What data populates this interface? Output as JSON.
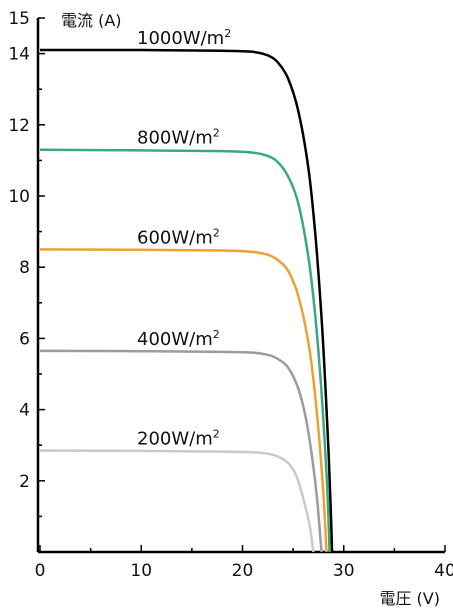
{
  "chart_data": {
    "type": "line",
    "title": "",
    "xlabel": "電圧 (V)",
    "ylabel": "電流 (A)",
    "xlim": [
      0,
      40
    ],
    "ylim": [
      0,
      15
    ],
    "xticks": [
      0,
      10,
      20,
      30,
      40
    ],
    "yticks": [
      2,
      4,
      6,
      8,
      10,
      12,
      14
    ],
    "y_axis_top_label": "15",
    "grid": false,
    "legend": "inline labels above each curve",
    "series": [
      {
        "name": "1000W/m²",
        "label_base": "1000W/m",
        "label_sup": "2",
        "color": "#000000",
        "x": [
          0,
          10,
          18,
          21,
          22.5,
          23.5,
          24.5,
          25.5,
          26.5,
          27.2,
          27.8,
          28.2,
          28.5,
          28.7,
          28.85
        ],
        "y": [
          14.1,
          14.1,
          14.08,
          14.05,
          13.95,
          13.75,
          13.3,
          12.4,
          10.8,
          8.9,
          6.6,
          4.6,
          2.8,
          1.3,
          0
        ]
      },
      {
        "name": "800W/m²",
        "label_base": "800W/m",
        "label_sup": "2",
        "color": "#3aa886",
        "x": [
          0,
          10,
          18,
          21,
          22.5,
          23.5,
          24.5,
          25.5,
          26.5,
          27.2,
          27.7,
          28.1,
          28.4,
          28.6
        ],
        "y": [
          11.3,
          11.28,
          11.26,
          11.22,
          11.12,
          10.95,
          10.55,
          9.8,
          8.3,
          6.6,
          4.9,
          3.2,
          1.6,
          0
        ]
      },
      {
        "name": "600W/m²",
        "label_base": "600W/m",
        "label_sup": "2",
        "color": "#f0a030",
        "x": [
          0,
          10,
          18,
          21,
          22.5,
          23.5,
          24.5,
          25.5,
          26.5,
          27.1,
          27.6,
          28.0,
          28.3
        ],
        "y": [
          8.5,
          8.49,
          8.47,
          8.43,
          8.35,
          8.2,
          7.9,
          7.2,
          5.9,
          4.6,
          3.1,
          1.6,
          0
        ]
      },
      {
        "name": "400W/m²",
        "label_base": "400W/m",
        "label_sup": "2",
        "color": "#9a9ba4",
        "x": [
          0,
          10,
          18,
          21,
          22.5,
          23.5,
          24.5,
          25.5,
          26.3,
          26.9,
          27.4,
          27.8
        ],
        "y": [
          5.65,
          5.64,
          5.62,
          5.6,
          5.54,
          5.42,
          5.18,
          4.6,
          3.7,
          2.6,
          1.4,
          0
        ]
      },
      {
        "name": "200W/m²",
        "label_base": "200W/m",
        "label_sup": "2",
        "color": "#c8c9cc",
        "x": [
          0,
          10,
          18,
          21,
          22.5,
          23.5,
          24.5,
          25.3,
          26.0,
          26.6,
          27.0
        ],
        "y": [
          2.85,
          2.84,
          2.82,
          2.8,
          2.76,
          2.68,
          2.5,
          2.15,
          1.5,
          0.8,
          0
        ]
      }
    ]
  }
}
